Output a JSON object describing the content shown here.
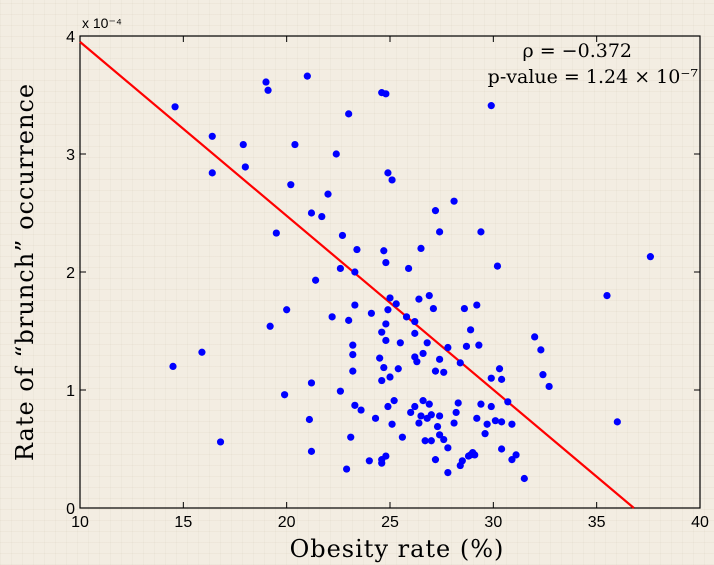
{
  "chart_data": {
    "type": "scatter",
    "xlabel": "Obesity rate (%)",
    "ylabel": "Rate of “brunch” occurrence",
    "xlim": [
      10,
      40
    ],
    "ylim": [
      0,
      4
    ],
    "xticks": [
      "10",
      "15",
      "20",
      "25",
      "30",
      "35",
      "40"
    ],
    "yticks": [
      "0",
      "1",
      "2",
      "3",
      "4"
    ],
    "y_scale_label": "x 10⁻⁴",
    "annotations": {
      "rho": "ρ = −0.372",
      "pvalue": "p-value = 1.24 × 10⁻⁷"
    },
    "grid": false,
    "point_color": "#0000ff",
    "fit_color": "#ff0000",
    "fit_line": {
      "x": [
        10,
        36.8
      ],
      "y": [
        3.95,
        0
      ]
    },
    "points": [
      [
        14.6,
        3.4
      ],
      [
        19.0,
        3.61
      ],
      [
        19.1,
        3.54
      ],
      [
        21.0,
        3.66
      ],
      [
        24.6,
        3.52
      ],
      [
        24.8,
        3.51
      ],
      [
        29.9,
        3.41
      ],
      [
        23.0,
        3.34
      ],
      [
        16.4,
        3.15
      ],
      [
        16.4,
        2.84
      ],
      [
        17.9,
        3.08
      ],
      [
        18.0,
        2.89
      ],
      [
        20.4,
        3.08
      ],
      [
        22.4,
        3.0
      ],
      [
        24.9,
        2.84
      ],
      [
        25.1,
        2.78
      ],
      [
        20.2,
        2.74
      ],
      [
        22.0,
        2.66
      ],
      [
        21.2,
        2.5
      ],
      [
        21.7,
        2.47
      ],
      [
        28.1,
        2.6
      ],
      [
        27.2,
        2.52
      ],
      [
        19.5,
        2.33
      ],
      [
        22.7,
        2.31
      ],
      [
        27.4,
        2.34
      ],
      [
        29.4,
        2.34
      ],
      [
        23.4,
        2.19
      ],
      [
        24.7,
        2.18
      ],
      [
        26.5,
        2.2
      ],
      [
        24.8,
        2.08
      ],
      [
        22.6,
        2.03
      ],
      [
        23.3,
        2.0
      ],
      [
        25.9,
        2.03
      ],
      [
        30.2,
        2.05
      ],
      [
        37.6,
        2.13
      ],
      [
        21.4,
        1.93
      ],
      [
        26.9,
        1.8
      ],
      [
        25.0,
        1.78
      ],
      [
        26.4,
        1.77
      ],
      [
        35.5,
        1.8
      ],
      [
        23.3,
        1.72
      ],
      [
        24.1,
        1.65
      ],
      [
        25.3,
        1.73
      ],
      [
        24.9,
        1.68
      ],
      [
        28.6,
        1.69
      ],
      [
        29.2,
        1.72
      ],
      [
        20.0,
        1.68
      ],
      [
        22.2,
        1.62
      ],
      [
        23.0,
        1.59
      ],
      [
        24.8,
        1.56
      ],
      [
        25.8,
        1.62
      ],
      [
        26.2,
        1.58
      ],
      [
        27.1,
        1.69
      ],
      [
        19.2,
        1.54
      ],
      [
        24.6,
        1.49
      ],
      [
        26.2,
        1.48
      ],
      [
        28.9,
        1.51
      ],
      [
        32.0,
        1.45
      ],
      [
        23.2,
        1.38
      ],
      [
        24.8,
        1.42
      ],
      [
        25.5,
        1.4
      ],
      [
        26.8,
        1.4
      ],
      [
        27.8,
        1.36
      ],
      [
        28.7,
        1.37
      ],
      [
        29.3,
        1.38
      ],
      [
        32.3,
        1.34
      ],
      [
        15.9,
        1.32
      ],
      [
        23.2,
        1.3
      ],
      [
        24.5,
        1.27
      ],
      [
        26.2,
        1.28
      ],
      [
        26.6,
        1.31
      ],
      [
        24.7,
        1.19
      ],
      [
        26.3,
        1.24
      ],
      [
        27.4,
        1.26
      ],
      [
        28.4,
        1.23
      ],
      [
        14.5,
        1.2
      ],
      [
        23.2,
        1.16
      ],
      [
        25.4,
        1.18
      ],
      [
        27.2,
        1.16
      ],
      [
        27.6,
        1.15
      ],
      [
        29.9,
        1.1
      ],
      [
        30.3,
        1.18
      ],
      [
        32.4,
        1.13
      ],
      [
        30.4,
        1.09
      ],
      [
        21.2,
        1.06
      ],
      [
        24.6,
        1.08
      ],
      [
        25.0,
        1.11
      ],
      [
        32.7,
        1.03
      ],
      [
        19.9,
        0.96
      ],
      [
        22.6,
        0.99
      ],
      [
        25.2,
        0.91
      ],
      [
        26.2,
        0.86
      ],
      [
        26.6,
        0.91
      ],
      [
        26.9,
        0.88
      ],
      [
        28.3,
        0.89
      ],
      [
        29.4,
        0.88
      ],
      [
        29.9,
        0.86
      ],
      [
        30.7,
        0.9
      ],
      [
        23.3,
        0.87
      ],
      [
        23.6,
        0.83
      ],
      [
        24.3,
        0.76
      ],
      [
        26.0,
        0.81
      ],
      [
        26.5,
        0.78
      ],
      [
        27.0,
        0.79
      ],
      [
        27.4,
        0.78
      ],
      [
        28.2,
        0.81
      ],
      [
        29.2,
        0.76
      ],
      [
        30.1,
        0.74
      ],
      [
        21.1,
        0.75
      ],
      [
        24.9,
        0.86
      ],
      [
        25.1,
        0.71
      ],
      [
        26.4,
        0.72
      ],
      [
        26.8,
        0.76
      ],
      [
        27.3,
        0.69
      ],
      [
        28.1,
        0.72
      ],
      [
        29.7,
        0.71
      ],
      [
        30.4,
        0.73
      ],
      [
        30.9,
        0.71
      ],
      [
        36.0,
        0.73
      ],
      [
        23.1,
        0.6
      ],
      [
        25.6,
        0.6
      ],
      [
        26.7,
        0.57
      ],
      [
        27.0,
        0.57
      ],
      [
        27.4,
        0.62
      ],
      [
        27.6,
        0.58
      ],
      [
        29.6,
        0.63
      ],
      [
        16.8,
        0.56
      ],
      [
        21.2,
        0.48
      ],
      [
        27.8,
        0.51
      ],
      [
        29.0,
        0.47
      ],
      [
        28.8,
        0.44
      ],
      [
        30.4,
        0.5
      ],
      [
        24.0,
        0.4
      ],
      [
        24.6,
        0.41
      ],
      [
        24.8,
        0.44
      ],
      [
        27.2,
        0.41
      ],
      [
        28.5,
        0.4
      ],
      [
        28.9,
        0.45
      ],
      [
        29.1,
        0.45
      ],
      [
        30.9,
        0.41
      ],
      [
        31.1,
        0.45
      ],
      [
        22.9,
        0.33
      ],
      [
        28.4,
        0.36
      ],
      [
        27.8,
        0.3
      ],
      [
        31.5,
        0.25
      ],
      [
        24.6,
        0.38
      ]
    ]
  }
}
